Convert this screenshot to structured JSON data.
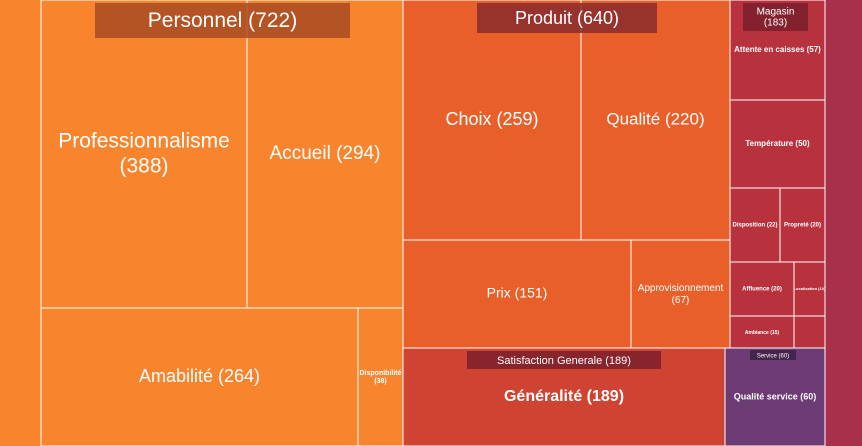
{
  "chart_data": {
    "type": "treemap",
    "groups": [
      {
        "name": "Personnel",
        "total": 722,
        "header": "Personnel (722)",
        "color": "#f8852d",
        "children": [
          {
            "name": "Professionnalisme",
            "value": 388,
            "label": "Professionnalisme (388)",
            "color": "#f8852d"
          },
          {
            "name": "Accueil",
            "value": 294,
            "label": "Accueil (294)",
            "color": "#f8852d"
          },
          {
            "name": "Amabilité",
            "value": 264,
            "label": "Amabilité (264)",
            "color": "#f8852d"
          },
          {
            "name": "Disponibilité",
            "value": 38,
            "label": "Disponibilité (38)",
            "color": "#f8852d"
          }
        ]
      },
      {
        "name": "Produit",
        "total": 640,
        "header": "Produit (640)",
        "color": "#e85f2a",
        "children": [
          {
            "name": "Choix",
            "value": 259,
            "label": "Choix (259)",
            "color": "#e85f2a"
          },
          {
            "name": "Qualité",
            "value": 220,
            "label": "Qualité (220)",
            "color": "#e85f2a"
          },
          {
            "name": "Prix",
            "value": 151,
            "label": "Prix (151)",
            "color": "#e85f2a"
          },
          {
            "name": "Approvisionnement",
            "value": 67,
            "label": "Approvisionnement (67)",
            "color": "#e85f2a"
          }
        ]
      },
      {
        "name": "Magasin",
        "total": 183,
        "header": "Magasin (183)",
        "color": "#b8323d",
        "children": [
          {
            "name": "Attente en caisses",
            "value": 57,
            "label": "Attente en caisses (57)",
            "color": "#b8323d"
          },
          {
            "name": "Température",
            "value": 50,
            "label": "Température (50)",
            "color": "#b8323d"
          },
          {
            "name": "Disposition",
            "value": 22,
            "label": "Disposition (22)",
            "color": "#b8323d"
          },
          {
            "name": "Propreté",
            "value": 20,
            "label": "Propreté (20)",
            "color": "#b8323d"
          },
          {
            "name": "Affluence",
            "value": 20,
            "label": "Affluence (20)",
            "color": "#b8323d"
          },
          {
            "name": "Localisation",
            "value": 10,
            "label": "Localisation (10)",
            "color": "#b8323d"
          },
          {
            "name": "Ambiance",
            "value": 15,
            "label": "Ambiance (15)",
            "color": "#b8323d"
          },
          {
            "name": "",
            "value": null,
            "label": "",
            "color": "#b8323d"
          }
        ]
      },
      {
        "name": "Satisfaction Generale",
        "total": 189,
        "header": "Satisfaction Generale (189)",
        "color": "#cf4332",
        "children": [
          {
            "name": "Généralité",
            "value": 189,
            "label": "Généralité (189)",
            "color": "#cf4332"
          }
        ]
      },
      {
        "name": "Service",
        "total": 60,
        "header": "Service (60)",
        "color": "#6d3b73",
        "children": [
          {
            "name": "Qualité service",
            "value": 60,
            "label": "Qualité service (60)",
            "color": "#6d3b73"
          }
        ]
      }
    ],
    "margin_colors": {
      "left": "#f8852d",
      "right": "#a8304a"
    },
    "header_box_colors": {
      "Personnel": "#a84a22",
      "Produit": "#8a2a2e",
      "Magasin": "#7a1f2c",
      "Satisfaction Generale": "#7a1f2c",
      "Service": "#3d2244"
    }
  }
}
